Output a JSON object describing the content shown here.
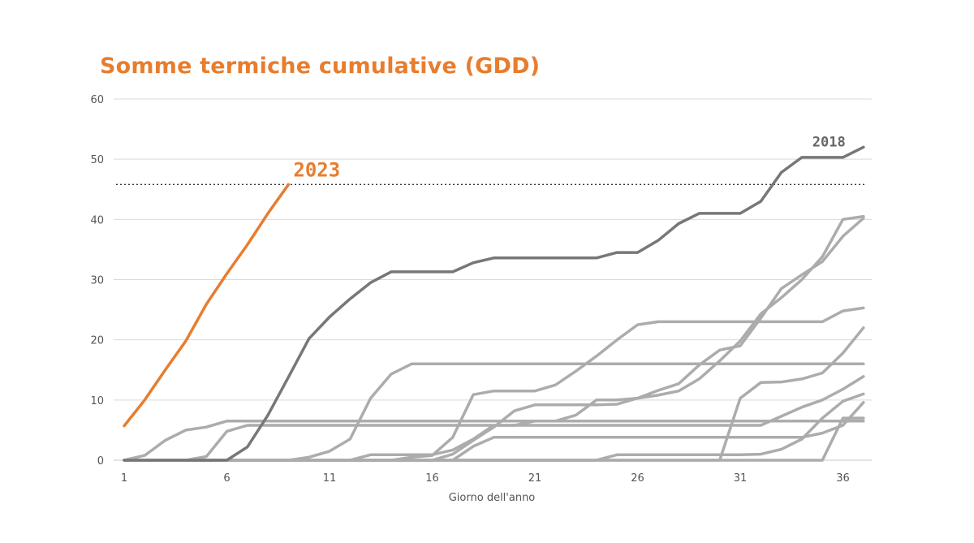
{
  "chart_data": {
    "type": "line",
    "title": "Somme termiche cumulative (GDD)",
    "xlabel": "Giorno dell'anno",
    "ylabel": "",
    "xlim": [
      1,
      37.4
    ],
    "ylim": [
      0,
      60
    ],
    "x_ticks": [
      1,
      6,
      11,
      16,
      21,
      26,
      31,
      36
    ],
    "y_ticks": [
      0,
      10,
      20,
      30,
      40,
      50,
      60
    ],
    "grid": "horizontal",
    "colors": {
      "highlight": "#e87d2e",
      "reference": "#777777",
      "others": "#acacac",
      "threshold": "#333333",
      "grid": "#d9d9d9"
    },
    "threshold": {
      "y": 45.8,
      "style": "dotted"
    },
    "annotations": [
      {
        "text": "2023",
        "series": "2023"
      },
      {
        "text": "2018",
        "series": "2018"
      }
    ],
    "series": [
      {
        "name": "2023",
        "style": "highlight",
        "x": [
          1,
          2,
          3,
          4,
          5,
          6,
          7,
          8,
          9
        ],
        "y": [
          5.7,
          10,
          15,
          19.8,
          25.9,
          31,
          35.8,
          41,
          45.8
        ]
      },
      {
        "name": "2018",
        "style": "reference",
        "x": [
          1,
          2,
          3,
          4,
          5,
          6,
          7,
          8,
          9,
          10,
          11,
          12,
          13,
          14,
          15,
          16,
          17,
          18,
          19,
          20,
          21,
          22,
          23,
          24,
          25,
          26,
          27,
          28,
          29,
          30,
          31,
          32,
          33,
          34,
          35,
          36,
          37
        ],
        "y": [
          0,
          0,
          0,
          0,
          0,
          0,
          2.2,
          7.5,
          13.8,
          20.2,
          23.8,
          26.8,
          29.5,
          31.3,
          31.3,
          31.3,
          31.3,
          32.8,
          33.6,
          33.6,
          33.6,
          33.6,
          33.6,
          33.6,
          34.5,
          34.5,
          36.5,
          39.3,
          41,
          41,
          41,
          43,
          47.8,
          50.3,
          50.3,
          50.3,
          52
        ]
      },
      {
        "name": "",
        "style": "other",
        "x": [
          1,
          2,
          3,
          4,
          5,
          6,
          7,
          8,
          9,
          10,
          11,
          12,
          13,
          14,
          15,
          16,
          17,
          18,
          19,
          20,
          21,
          22,
          23,
          24,
          25,
          26,
          27,
          28,
          29,
          30,
          31,
          32,
          33,
          34,
          35,
          36,
          37
        ],
        "y": [
          0,
          0,
          0,
          0,
          0,
          0,
          0,
          0,
          0,
          0.5,
          1.5,
          3.5,
          10.3,
          14.3,
          16,
          16,
          16,
          16,
          16,
          16,
          16,
          16,
          16,
          16,
          16,
          16,
          16,
          16,
          16,
          16,
          16,
          16,
          16,
          16,
          16,
          16,
          16
        ]
      },
      {
        "name": "",
        "style": "other",
        "x": [
          1,
          2,
          3,
          4,
          5,
          6,
          7,
          8,
          9,
          10,
          11,
          12,
          13,
          14,
          15,
          16,
          17,
          18,
          19,
          20,
          21,
          22,
          23,
          24,
          25,
          26,
          27,
          28,
          29,
          30,
          31,
          32,
          33,
          34,
          35,
          36,
          37
        ],
        "y": [
          0,
          0,
          0,
          0,
          0,
          0,
          0,
          0,
          0,
          0,
          0,
          0,
          0,
          0,
          0.5,
          0.8,
          3.8,
          10.9,
          11.5,
          11.5,
          11.5,
          12.5,
          14.8,
          17.3,
          20,
          22.5,
          23,
          23,
          23,
          23,
          23,
          23,
          23,
          23,
          23,
          24.8,
          25.3
        ]
      },
      {
        "name": "",
        "style": "other",
        "x": [
          1,
          2,
          3,
          4,
          5,
          6,
          7,
          8,
          9,
          10,
          11,
          12,
          13,
          14,
          15,
          16,
          17,
          18,
          19,
          20,
          21,
          22,
          23,
          24,
          25,
          26,
          27,
          28,
          29,
          30,
          31,
          32,
          33,
          34,
          35,
          36,
          37
        ],
        "y": [
          0,
          0,
          0,
          0,
          0.6,
          4.8,
          5.8,
          5.8,
          5.8,
          5.8,
          5.8,
          5.8,
          5.8,
          5.8,
          5.8,
          5.8,
          5.8,
          5.8,
          5.8,
          5.8,
          5.8,
          5.8,
          5.8,
          5.8,
          5.8,
          5.8,
          5.8,
          5.8,
          5.8,
          5.8,
          5.8,
          5.8,
          7.3,
          8.8,
          10,
          11.8,
          13.9
        ]
      },
      {
        "name": "",
        "style": "other",
        "x": [
          1,
          2,
          3,
          4,
          5,
          6,
          7,
          8,
          9,
          10,
          11,
          12,
          13,
          14,
          15,
          16,
          17,
          18,
          19,
          20,
          21,
          22,
          23,
          24,
          25,
          26,
          27,
          28,
          29,
          30,
          31,
          32,
          33,
          34,
          35,
          36,
          37
        ],
        "y": [
          0,
          0.8,
          3.3,
          5,
          5.5,
          6.5,
          6.5,
          6.5,
          6.5,
          6.5,
          6.5,
          6.5,
          6.5,
          6.5,
          6.5,
          6.5,
          6.5,
          6.5,
          6.5,
          6.5,
          6.5,
          6.5,
          6.5,
          6.5,
          6.5,
          6.5,
          6.5,
          6.5,
          6.5,
          6.5,
          6.5,
          6.5,
          6.5,
          6.5,
          6.5,
          6.5,
          6.5
        ]
      },
      {
        "name": "",
        "style": "other",
        "x": [
          1,
          2,
          3,
          4,
          5,
          6,
          7,
          8,
          9,
          10,
          11,
          12,
          13,
          14,
          15,
          16,
          17,
          18,
          19,
          20,
          21,
          22,
          23,
          24,
          25,
          26,
          27,
          28,
          29,
          30,
          31,
          32,
          33,
          34,
          35,
          36,
          37
        ],
        "y": [
          0,
          0,
          0,
          0,
          0,
          0,
          0,
          0,
          0,
          0,
          0,
          0,
          0,
          0,
          0,
          0,
          1,
          3.3,
          5.5,
          8.2,
          9.2,
          9.2,
          9.2,
          9.2,
          9.3,
          10.3,
          11.6,
          12.7,
          15.8,
          18.3,
          19,
          23.6,
          28.5,
          30.8,
          33,
          37.2,
          40.2
        ]
      },
      {
        "name": "",
        "style": "other",
        "x": [
          1,
          2,
          3,
          4,
          5,
          6,
          7,
          8,
          9,
          10,
          11,
          12,
          13,
          14,
          15,
          16,
          17,
          18,
          19,
          20,
          21,
          22,
          23,
          24,
          25,
          26,
          27,
          28,
          29,
          30,
          31,
          32,
          33,
          34,
          35,
          36,
          37
        ],
        "y": [
          0,
          0,
          0,
          0,
          0,
          0,
          0,
          0,
          0,
          0,
          0,
          0,
          0.9,
          0.9,
          0.9,
          0.9,
          1.7,
          3.5,
          5.8,
          5.8,
          6.5,
          6.5,
          7.5,
          10,
          10,
          10.3,
          10.8,
          11.5,
          13.5,
          16.5,
          19.8,
          24.3,
          27,
          30,
          33.8,
          40,
          40.5
        ]
      },
      {
        "name": "",
        "style": "other",
        "x": [
          1,
          2,
          3,
          4,
          5,
          6,
          7,
          8,
          9,
          10,
          11,
          12,
          13,
          14,
          15,
          16,
          17,
          18,
          19,
          20,
          21,
          22,
          23,
          24,
          25,
          26,
          27,
          28,
          29,
          30,
          31,
          32,
          33,
          34,
          35,
          36,
          37
        ],
        "y": [
          0,
          0,
          0,
          0,
          0,
          0,
          0,
          0,
          0,
          0,
          0,
          0,
          0,
          0,
          0,
          0,
          0,
          2.3,
          3.8,
          3.8,
          3.8,
          3.8,
          3.8,
          3.8,
          3.8,
          3.8,
          3.8,
          3.8,
          3.8,
          3.8,
          3.8,
          3.8,
          3.8,
          3.8,
          4.5,
          5.8,
          9.6
        ]
      },
      {
        "name": "",
        "style": "other",
        "x": [
          1,
          2,
          3,
          4,
          5,
          6,
          7,
          8,
          9,
          10,
          11,
          12,
          13,
          14,
          15,
          16,
          17,
          18,
          19,
          20,
          21,
          22,
          23,
          24,
          25,
          26,
          27,
          28,
          29,
          30,
          31,
          32,
          33,
          34,
          35,
          36,
          37
        ],
        "y": [
          0,
          0,
          0,
          0,
          0,
          0,
          0,
          0,
          0,
          0,
          0,
          0,
          0,
          0,
          0,
          0,
          0,
          0,
          0,
          0,
          0,
          0,
          0,
          0,
          0,
          0,
          0,
          0,
          0,
          0,
          0,
          0,
          0,
          0,
          0,
          7,
          7
        ]
      },
      {
        "name": "",
        "style": "other",
        "x": [
          1,
          2,
          3,
          4,
          5,
          6,
          7,
          8,
          9,
          10,
          11,
          12,
          13,
          14,
          15,
          16,
          17,
          18,
          19,
          20,
          21,
          22,
          23,
          24,
          25,
          26,
          27,
          28,
          29,
          30,
          31,
          32,
          33,
          34,
          35,
          36,
          37
        ],
        "y": [
          0,
          0,
          0,
          0,
          0,
          0,
          0,
          0,
          0,
          0,
          0,
          0,
          0,
          0,
          0,
          0,
          0,
          0,
          0,
          0,
          0,
          0,
          0,
          0,
          0.9,
          0.9,
          0.9,
          0.9,
          0.9,
          0.9,
          0.9,
          1,
          1.8,
          3.5,
          7,
          9.8,
          11
        ]
      },
      {
        "name": "",
        "style": "other",
        "x": [
          1,
          2,
          3,
          4,
          5,
          6,
          7,
          8,
          9,
          10,
          11,
          12,
          13,
          14,
          15,
          16,
          17,
          18,
          19,
          20,
          21,
          22,
          23,
          24,
          25,
          26,
          27,
          28,
          29,
          30,
          31,
          32,
          33,
          34,
          35,
          36,
          37
        ],
        "y": [
          0,
          0,
          0,
          0,
          0,
          0,
          0,
          0,
          0,
          0,
          0,
          0,
          0,
          0,
          0,
          0,
          0,
          0,
          0,
          0,
          0,
          0,
          0,
          0,
          0,
          0,
          0,
          0,
          0,
          0,
          10.3,
          12.9,
          13,
          13.5,
          14.5,
          17.8,
          22
        ]
      }
    ]
  }
}
